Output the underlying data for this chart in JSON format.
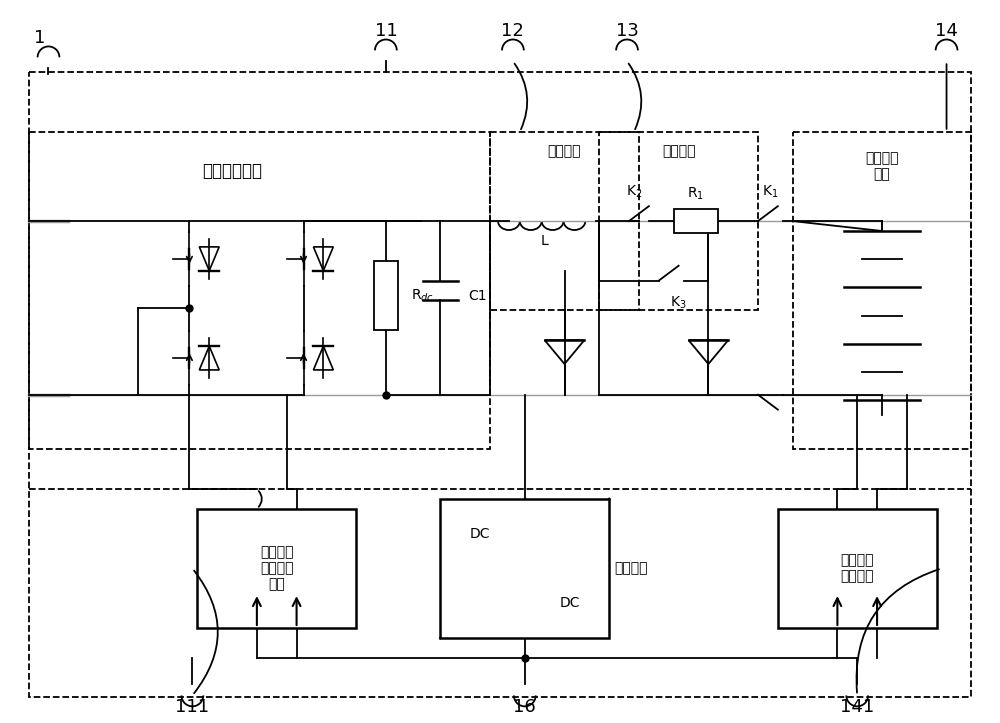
{
  "bg_color": "#ffffff",
  "lc": "#000000",
  "gc": "#999999",
  "fig_w": 10.0,
  "fig_h": 7.23,
  "box_labels": {
    "bidirectional": "双向变换装置",
    "filter": "滤波装置",
    "soft_start": "软起装置",
    "battery": "储能电池\n装置",
    "ctrl_unit": "双向变换\n装置控制\n单元",
    "switch_power": "开关电源",
    "battery_mgmt": "电池管理\n系统单元"
  }
}
